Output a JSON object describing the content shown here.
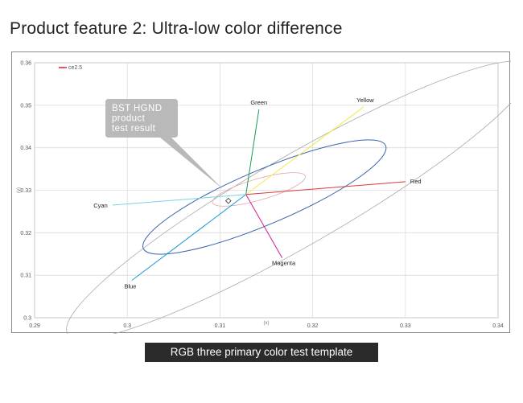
{
  "page": {
    "title": "Product feature 2: Ultra-low color difference",
    "caption": "RGB three primary color test template"
  },
  "callout": {
    "lines": [
      "BST HGND",
      "product",
      "test result"
    ],
    "color": "#b9b9b9"
  },
  "chart_data": {
    "type": "scatter",
    "title": "",
    "xlabel": "(x)",
    "ylabel": "(y)",
    "xlim": [
      0.29,
      0.34
    ],
    "ylim": [
      0.3,
      0.36
    ],
    "xticks": [
      "0.29",
      "0.3",
      "0.31",
      "0.32",
      "0.33",
      "0.34"
    ],
    "yticks": [
      "0.3",
      "0.31",
      "0.32",
      "0.33",
      "0.34",
      "0.35",
      "0.36"
    ],
    "grid": true,
    "legend": {
      "placement": "top-left",
      "entries": [
        {
          "name": "ce2.5",
          "color": "#e8546a"
        }
      ]
    },
    "center": [
      0.3128,
      0.329
    ],
    "series": [
      {
        "name": "Green",
        "color": "#1c9a52",
        "x": [
          0.3128,
          0.3142
        ],
        "y": [
          0.329,
          0.349
        ]
      },
      {
        "name": "Yellow",
        "color": "#f2ea4a",
        "x": [
          0.3128,
          0.3255
        ],
        "y": [
          0.329,
          0.3496
        ]
      },
      {
        "name": "Red",
        "color": "#d93a3a",
        "x": [
          0.3128,
          0.33
        ],
        "y": [
          0.329,
          0.332
        ]
      },
      {
        "name": "Magenta",
        "color": "#d41f8c",
        "x": [
          0.3128,
          0.3167
        ],
        "y": [
          0.329,
          0.3141
        ]
      },
      {
        "name": "Blue",
        "color": "#1a9ad6",
        "x": [
          0.3128,
          0.3005
        ],
        "y": [
          0.329,
          0.3088
        ]
      },
      {
        "name": "Cyan",
        "color": "#7fd0e6",
        "x": [
          0.3128,
          0.2984
        ],
        "y": [
          0.329,
          0.3265
        ]
      }
    ],
    "ellipses": [
      {
        "color": "#aaaaaa",
        "cx": 0.3185,
        "cy": 0.3277,
        "rx": 0.0288,
        "ry": 0.0105,
        "angle_deg": -30
      },
      {
        "color": "#3a62b0",
        "cx": 0.3148,
        "cy": 0.3284,
        "rx": 0.0142,
        "ry": 0.0064,
        "angle_deg": -23
      },
      {
        "color": "#e8a6ad",
        "cx": 0.3142,
        "cy": 0.3302,
        "rx": 0.0052,
        "ry": 0.0025,
        "angle_deg": -16
      }
    ],
    "marker": {
      "x": 0.3109,
      "y": 0.3275
    }
  }
}
